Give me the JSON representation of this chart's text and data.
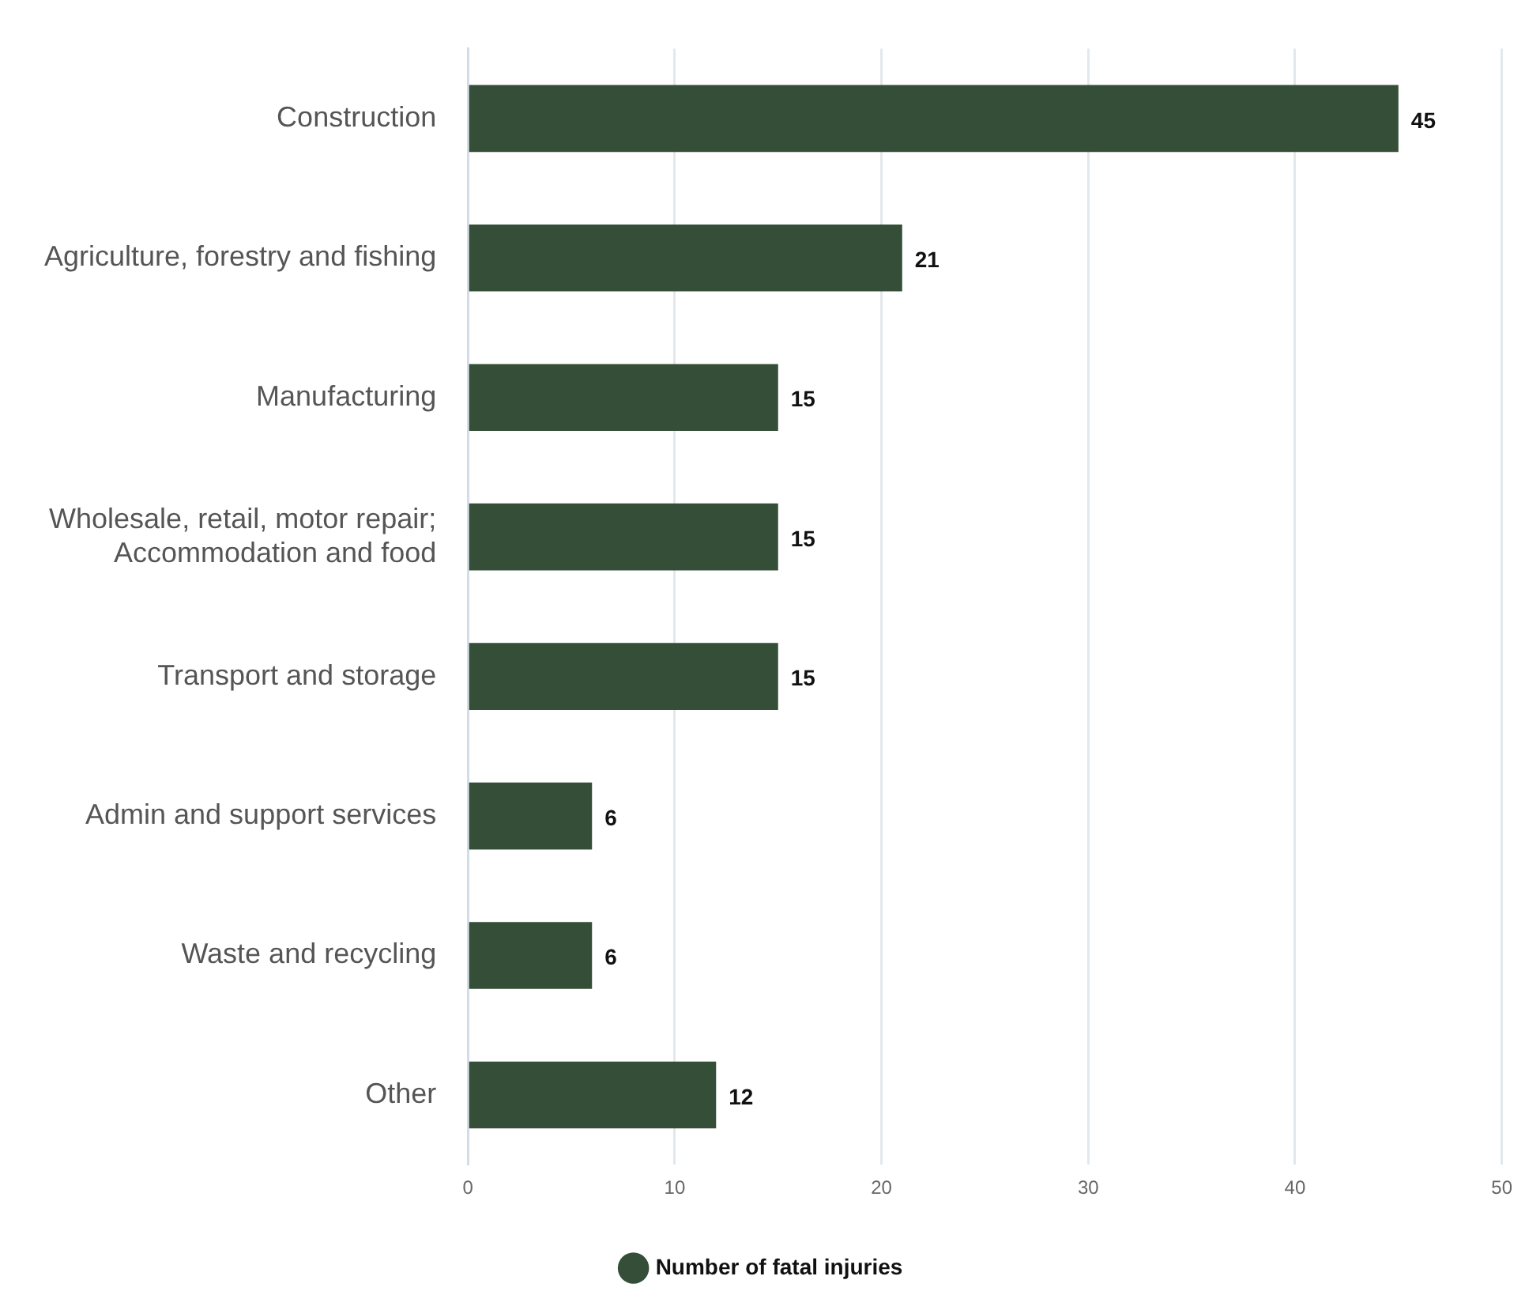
{
  "chart_data": {
    "type": "bar",
    "orientation": "horizontal",
    "categories": [
      "Construction",
      "Agriculture, forestry and fishing",
      "Manufacturing",
      "Wholesale, retail, motor repair; Accommodation and food",
      "Transport and storage",
      "Admin and support services",
      "Waste and recycling",
      "Other"
    ],
    "series": [
      {
        "name": "Number of fatal injuries",
        "color": "#344e37",
        "values": [
          45,
          21,
          15,
          15,
          15,
          6,
          6,
          12
        ]
      }
    ],
    "xlim": [
      0,
      50
    ],
    "xticks": [
      0,
      10,
      20,
      30,
      40,
      50
    ],
    "grid": "x",
    "legend": "bottom",
    "data_labels": true
  }
}
